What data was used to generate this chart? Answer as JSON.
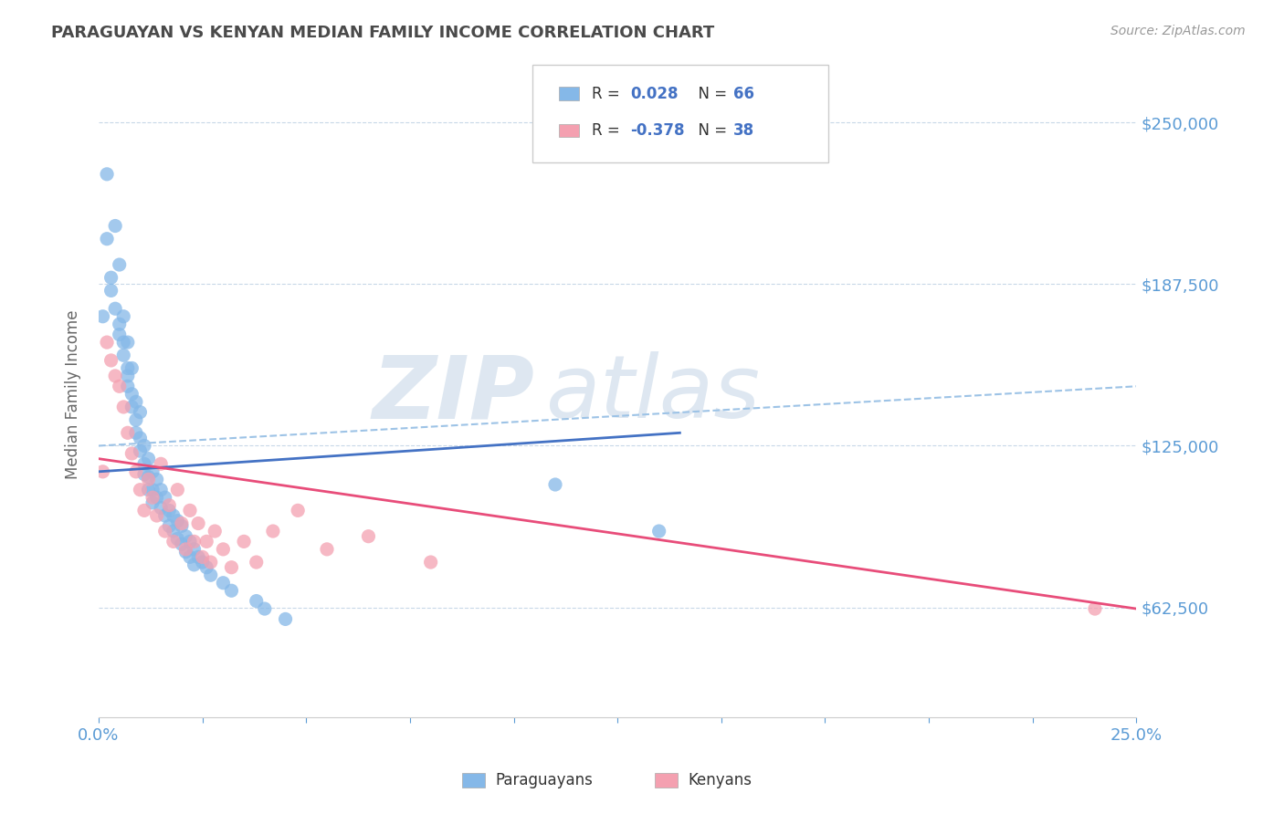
{
  "title": "PARAGUAYAN VS KENYAN MEDIAN FAMILY INCOME CORRELATION CHART",
  "source": "Source: ZipAtlas.com",
  "ylabel": "Median Family Income",
  "xlim": [
    0.0,
    0.25
  ],
  "ylim": [
    20000,
    270000
  ],
  "yticks": [
    62500,
    125000,
    187500,
    250000
  ],
  "ytick_labels": [
    "$62,500",
    "$125,000",
    "$187,500",
    "$250,000"
  ],
  "xticks": [
    0.0,
    0.025,
    0.05,
    0.075,
    0.1,
    0.125,
    0.15,
    0.175,
    0.2,
    0.225,
    0.25
  ],
  "watermark_line1": "ZIP",
  "watermark_line2": "atlas",
  "title_color": "#4a4a4a",
  "axis_label_color": "#666666",
  "tick_color": "#5b9bd5",
  "grid_color": "#c8d8e8",
  "background_color": "#ffffff",
  "paraguayan_color": "#85b8e8",
  "kenyan_color": "#f4a0b0",
  "paraguayan_line_color": "#4472c4",
  "kenyan_line_color": "#e84d7a",
  "dashed_line_color": "#9dc3e6",
  "paraguayan_R": 0.028,
  "paraguayan_N": 66,
  "kenyan_R": -0.378,
  "kenyan_N": 38,
  "paraguayan_scatter_x": [
    0.001,
    0.002,
    0.002,
    0.003,
    0.003,
    0.004,
    0.004,
    0.005,
    0.005,
    0.005,
    0.006,
    0.006,
    0.006,
    0.007,
    0.007,
    0.007,
    0.007,
    0.008,
    0.008,
    0.008,
    0.009,
    0.009,
    0.009,
    0.01,
    0.01,
    0.01,
    0.011,
    0.011,
    0.011,
    0.012,
    0.012,
    0.012,
    0.013,
    0.013,
    0.013,
    0.014,
    0.014,
    0.015,
    0.015,
    0.016,
    0.016,
    0.017,
    0.017,
    0.018,
    0.018,
    0.019,
    0.019,
    0.02,
    0.02,
    0.021,
    0.021,
    0.022,
    0.022,
    0.023,
    0.023,
    0.024,
    0.025,
    0.026,
    0.027,
    0.03,
    0.032,
    0.038,
    0.04,
    0.045,
    0.11,
    0.135
  ],
  "paraguayan_scatter_y": [
    175000,
    230000,
    205000,
    190000,
    185000,
    210000,
    178000,
    172000,
    168000,
    195000,
    175000,
    165000,
    160000,
    165000,
    155000,
    152000,
    148000,
    155000,
    145000,
    140000,
    142000,
    135000,
    130000,
    138000,
    128000,
    123000,
    125000,
    118000,
    114000,
    120000,
    113000,
    108000,
    115000,
    108000,
    103000,
    112000,
    105000,
    108000,
    101000,
    105000,
    98000,
    100000,
    94000,
    98000,
    92000,
    96000,
    89000,
    94000,
    87000,
    90000,
    84000,
    88000,
    82000,
    85000,
    79000,
    82000,
    80000,
    78000,
    75000,
    72000,
    69000,
    65000,
    62000,
    58000,
    110000,
    92000
  ],
  "kenyan_scatter_x": [
    0.001,
    0.002,
    0.003,
    0.004,
    0.005,
    0.006,
    0.007,
    0.008,
    0.009,
    0.01,
    0.011,
    0.012,
    0.013,
    0.014,
    0.015,
    0.016,
    0.017,
    0.018,
    0.019,
    0.02,
    0.021,
    0.022,
    0.023,
    0.024,
    0.025,
    0.026,
    0.027,
    0.028,
    0.03,
    0.032,
    0.035,
    0.038,
    0.042,
    0.048,
    0.055,
    0.065,
    0.08,
    0.24
  ],
  "kenyan_scatter_y": [
    115000,
    165000,
    158000,
    152000,
    148000,
    140000,
    130000,
    122000,
    115000,
    108000,
    100000,
    112000,
    105000,
    98000,
    118000,
    92000,
    102000,
    88000,
    108000,
    95000,
    85000,
    100000,
    88000,
    95000,
    82000,
    88000,
    80000,
    92000,
    85000,
    78000,
    88000,
    80000,
    92000,
    100000,
    85000,
    90000,
    80000,
    62000
  ],
  "p_trend_x0": 0.0,
  "p_trend_y0": 115000,
  "p_trend_x1": 0.14,
  "p_trend_y1": 130000,
  "k_trend_x0": 0.0,
  "k_trend_y0": 120000,
  "k_trend_x1": 0.25,
  "k_trend_y1": 62000,
  "dash_trend_x0": 0.0,
  "dash_trend_y0": 125000,
  "dash_trend_x1": 0.25,
  "dash_trend_y1": 148000
}
